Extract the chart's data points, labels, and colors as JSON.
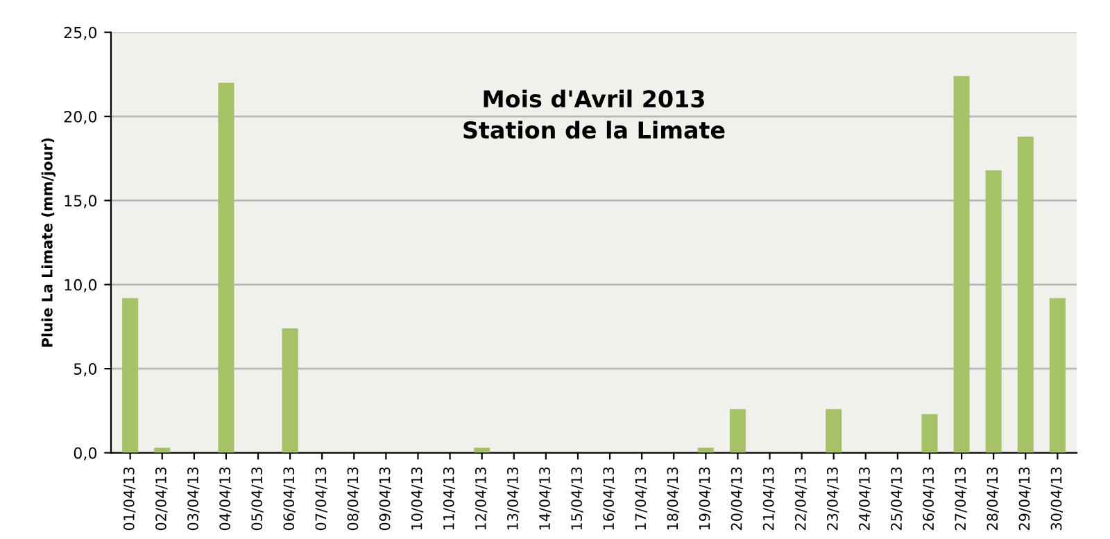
{
  "chart_data": {
    "type": "bar",
    "title": "Mois d'Avril 2013\nStation de la Limate",
    "ylabel": "Pluie La Limate (mm/jour)",
    "categories": [
      "01/04/13",
      "02/04/13",
      "03/04/13",
      "04/04/13",
      "05/04/13",
      "06/04/13",
      "07/04/13",
      "08/04/13",
      "09/04/13",
      "10/04/13",
      "11/04/13",
      "12/04/13",
      "13/04/13",
      "14/04/13",
      "15/04/13",
      "16/04/13",
      "17/04/13",
      "18/04/13",
      "19/04/13",
      "20/04/13",
      "21/04/13",
      "22/04/13",
      "23/04/13",
      "24/04/13",
      "25/04/13",
      "26/04/13",
      "27/04/13",
      "28/04/13",
      "29/04/13",
      "30/04/13"
    ],
    "values": [
      9.2,
      0.3,
      0,
      22.0,
      0,
      7.4,
      0,
      0,
      0,
      0,
      0,
      0.3,
      0,
      0,
      0,
      0,
      0,
      0,
      0.3,
      2.6,
      0,
      0,
      2.6,
      0,
      0,
      2.3,
      22.4,
      16.8,
      18.8,
      9.2
    ],
    "color": "#a5c266",
    "ylim": [
      0,
      25
    ],
    "yticks": [
      {
        "value": 0,
        "label": "0,0"
      },
      {
        "value": 5,
        "label": "5,0"
      },
      {
        "value": 10,
        "label": "10,0"
      },
      {
        "value": 15,
        "label": "15,0"
      },
      {
        "value": 20,
        "label": "20,0"
      },
      {
        "value": 25,
        "label": "25,0"
      }
    ],
    "grid": "y",
    "legend": false
  }
}
